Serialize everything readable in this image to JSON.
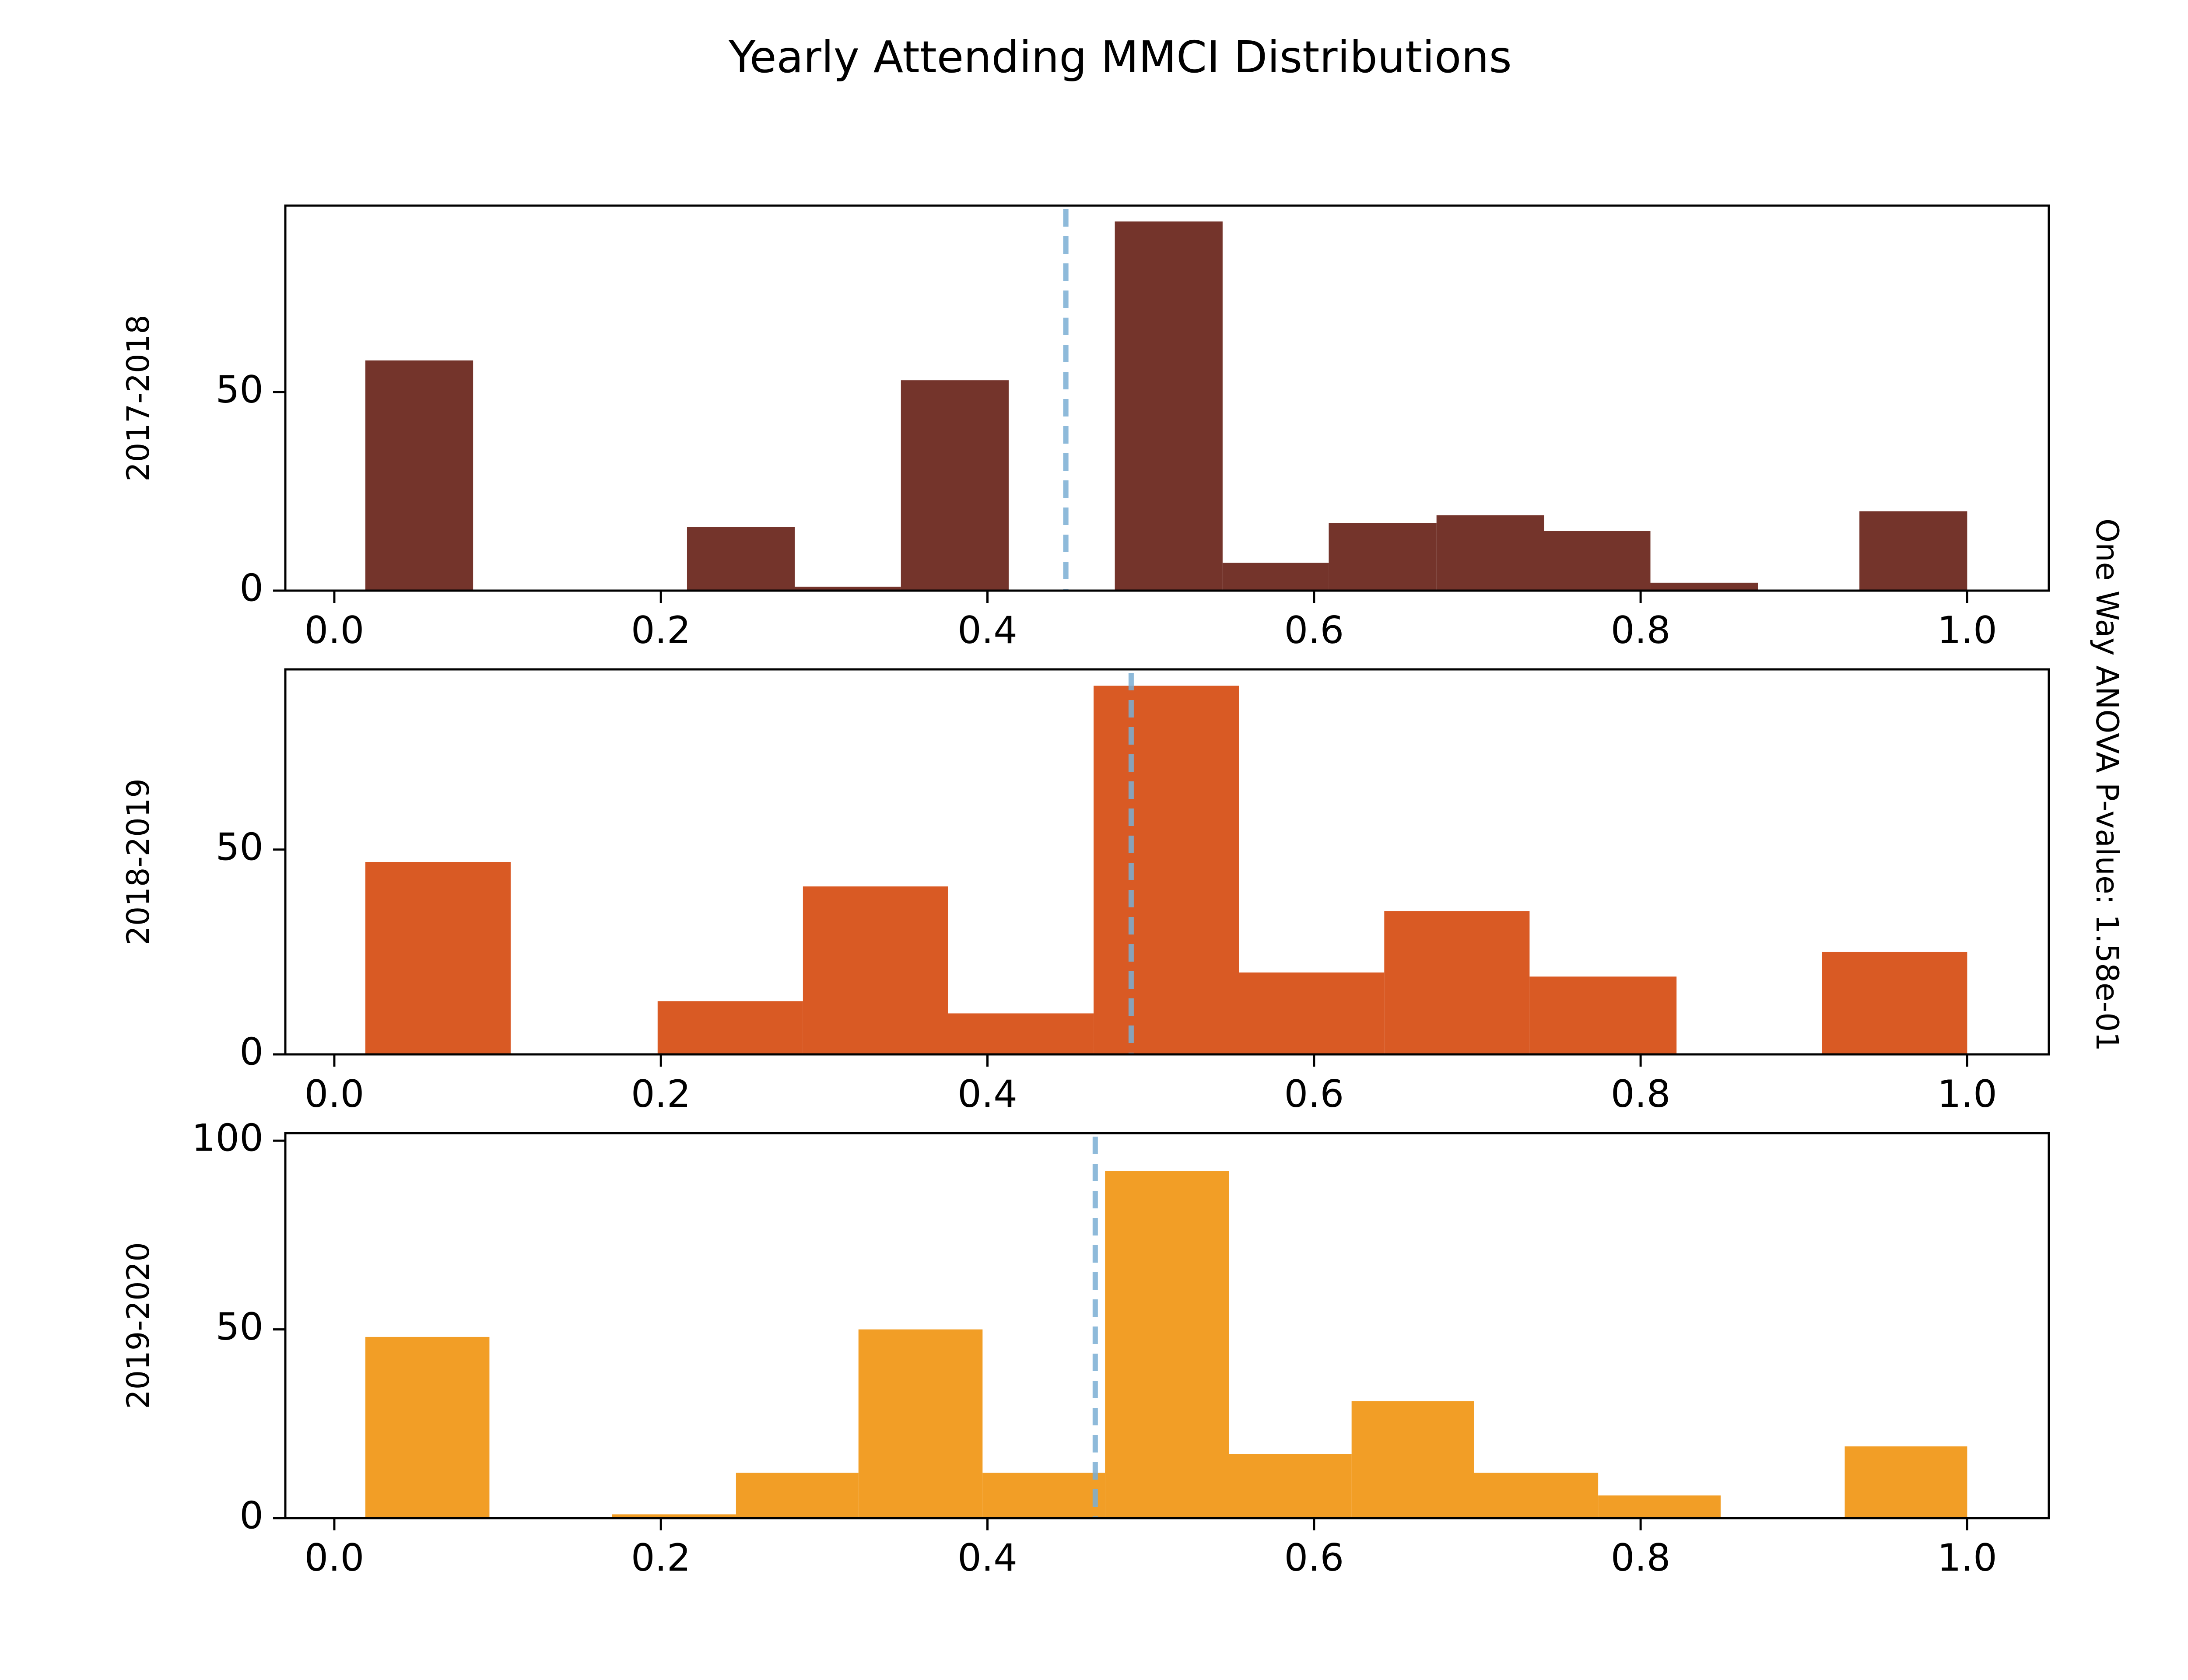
{
  "chart_data": {
    "type": "bar",
    "title": "Yearly Attending MMCI Distributions",
    "side_annotation": "One Way ANOVA P-value: 1.58e-01",
    "xlim": [
      -0.03,
      1.05
    ],
    "xticks": [
      "0.0",
      "0.2",
      "0.4",
      "0.6",
      "0.8",
      "1.0"
    ],
    "grid": false,
    "panels": [
      {
        "ylabel": "2017-2018",
        "color": "#74342b",
        "ylim": [
          0,
          97
        ],
        "yticks": [
          "0",
          "50"
        ],
        "mean_line": 0.448,
        "bins": [
          {
            "x0": 0.019,
            "x1": 0.085,
            "value": 58
          },
          {
            "x0": 0.216,
            "x1": 0.282,
            "value": 16
          },
          {
            "x0": 0.282,
            "x1": 0.347,
            "value": 1
          },
          {
            "x0": 0.347,
            "x1": 0.413,
            "value": 53
          },
          {
            "x0": 0.478,
            "x1": 0.544,
            "value": 93
          },
          {
            "x0": 0.544,
            "x1": 0.609,
            "value": 7
          },
          {
            "x0": 0.609,
            "x1": 0.675,
            "value": 17
          },
          {
            "x0": 0.675,
            "x1": 0.741,
            "value": 19
          },
          {
            "x0": 0.741,
            "x1": 0.806,
            "value": 15
          },
          {
            "x0": 0.806,
            "x1": 0.872,
            "value": 2
          },
          {
            "x0": 0.934,
            "x1": 1.0,
            "value": 20
          }
        ]
      },
      {
        "ylabel": "2018-2019",
        "color": "#d95a24",
        "ylim": [
          0,
          94
        ],
        "yticks": [
          "0",
          "50"
        ],
        "mean_line": 0.488,
        "bins": [
          {
            "x0": 0.019,
            "x1": 0.108,
            "value": 47
          },
          {
            "x0": 0.198,
            "x1": 0.287,
            "value": 13
          },
          {
            "x0": 0.287,
            "x1": 0.376,
            "value": 41
          },
          {
            "x0": 0.376,
            "x1": 0.465,
            "value": 10
          },
          {
            "x0": 0.465,
            "x1": 0.554,
            "value": 90
          },
          {
            "x0": 0.554,
            "x1": 0.643,
            "value": 20
          },
          {
            "x0": 0.643,
            "x1": 0.732,
            "value": 35
          },
          {
            "x0": 0.732,
            "x1": 0.822,
            "value": 19
          },
          {
            "x0": 0.911,
            "x1": 1.0,
            "value": 25
          }
        ]
      },
      {
        "ylabel": "2019-2020",
        "color": "#f29e26",
        "ylim": [
          0,
          102
        ],
        "yticks": [
          "0",
          "50",
          "100"
        ],
        "mean_line": 0.466,
        "bins": [
          {
            "x0": 0.019,
            "x1": 0.095,
            "value": 48
          },
          {
            "x0": 0.17,
            "x1": 0.246,
            "value": 1
          },
          {
            "x0": 0.246,
            "x1": 0.321,
            "value": 12
          },
          {
            "x0": 0.321,
            "x1": 0.397,
            "value": 50
          },
          {
            "x0": 0.397,
            "x1": 0.472,
            "value": 12
          },
          {
            "x0": 0.472,
            "x1": 0.548,
            "value": 92
          },
          {
            "x0": 0.548,
            "x1": 0.623,
            "value": 17
          },
          {
            "x0": 0.623,
            "x1": 0.698,
            "value": 31
          },
          {
            "x0": 0.698,
            "x1": 0.774,
            "value": 12
          },
          {
            "x0": 0.774,
            "x1": 0.849,
            "value": 6
          },
          {
            "x0": 0.925,
            "x1": 1.0,
            "value": 19
          }
        ]
      }
    ],
    "mean_line_color": "#7bafd4"
  }
}
